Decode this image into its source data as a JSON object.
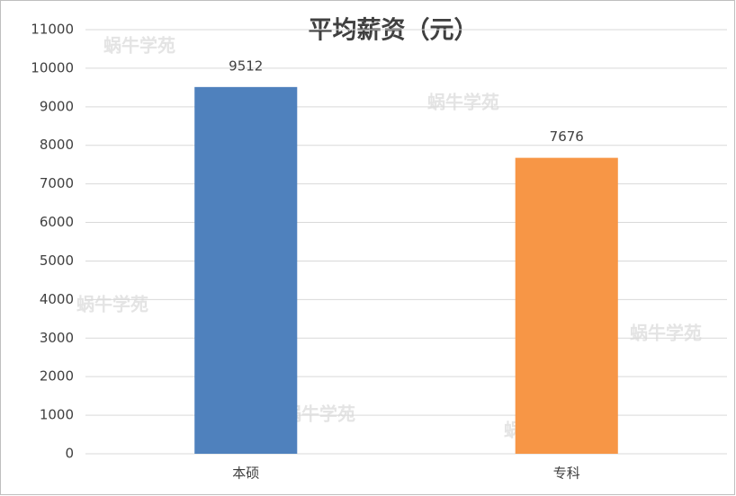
{
  "chart_data": {
    "type": "bar",
    "title": "平均薪资（元）",
    "categories": [
      "本硕",
      "专科"
    ],
    "values": [
      9512,
      7676
    ],
    "colors": [
      "#4f81bd",
      "#f79646"
    ],
    "ylim": [
      0,
      11000
    ],
    "yticks": [
      0,
      1000,
      2000,
      3000,
      4000,
      5000,
      6000,
      7000,
      8000,
      9000,
      10000,
      11000
    ],
    "grid": true,
    "watermark": "蜗牛学苑"
  }
}
